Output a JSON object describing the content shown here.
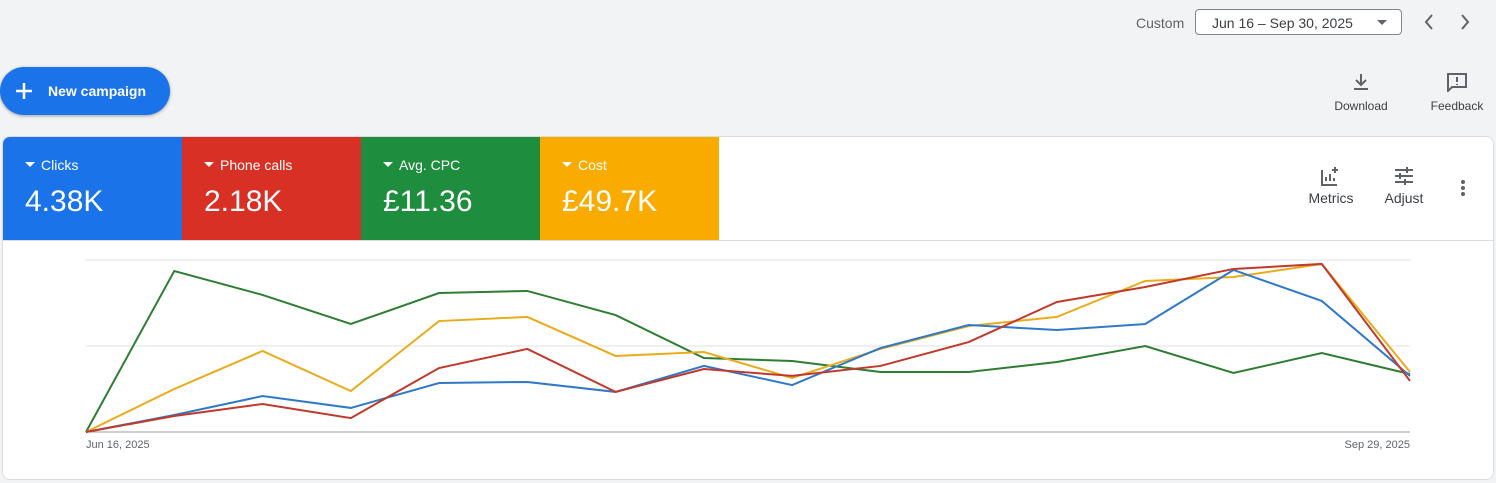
{
  "toolbar": {
    "range_label": "Custom",
    "date_range": "Jun 16 – Sep 30, 2025",
    "new_campaign": "New campaign",
    "download": "Download",
    "feedback": "Feedback",
    "metrics": "Metrics",
    "adjust": "Adjust"
  },
  "chart_data": {
    "type": "line",
    "categories": [
      "Jun 16, 2025",
      null,
      null,
      null,
      null,
      null,
      null,
      null,
      null,
      null,
      null,
      null,
      null,
      null,
      null,
      "Sep 29, 2025"
    ],
    "ylim": [
      0,
      100
    ],
    "series": [
      {
        "name": "Clicks",
        "total": "4.38K",
        "color": "#1a73e8",
        "line_color": "#3079c9",
        "values": [
          0,
          9.9,
          20.9,
          14,
          28.5,
          29.1,
          23.3,
          38.4,
          27.3,
          48.8,
          62.2,
          59.3,
          62.8,
          94.2,
          76.2,
          32.6
        ]
      },
      {
        "name": "Phone calls",
        "total": "2.18K",
        "color": "#d93025",
        "line_color": "#c0392b",
        "values": [
          0,
          9.3,
          16.3,
          8.1,
          37.2,
          48.3,
          23.3,
          36.6,
          32.6,
          38.4,
          52.3,
          75.6,
          84.3,
          94.8,
          97.7,
          29.7
        ]
      },
      {
        "name": "Avg. CPC",
        "total": "£11.36",
        "color": "#1e8e3e",
        "line_color": "#2e7d32",
        "values": [
          0,
          93.6,
          79.7,
          62.8,
          80.8,
          82,
          68,
          43,
          41.3,
          34.9,
          34.9,
          40.7,
          50,
          34.3,
          45.9,
          33.7
        ]
      },
      {
        "name": "Cost",
        "total": "£49.7K",
        "color": "#f9ab00",
        "line_color": "#e8ac1c",
        "values": [
          0,
          25,
          47.1,
          23.8,
          64.5,
          66.9,
          44.2,
          46.5,
          31.4,
          48.3,
          61.6,
          66.9,
          87.8,
          90.1,
          97.7,
          34.9
        ]
      }
    ]
  }
}
